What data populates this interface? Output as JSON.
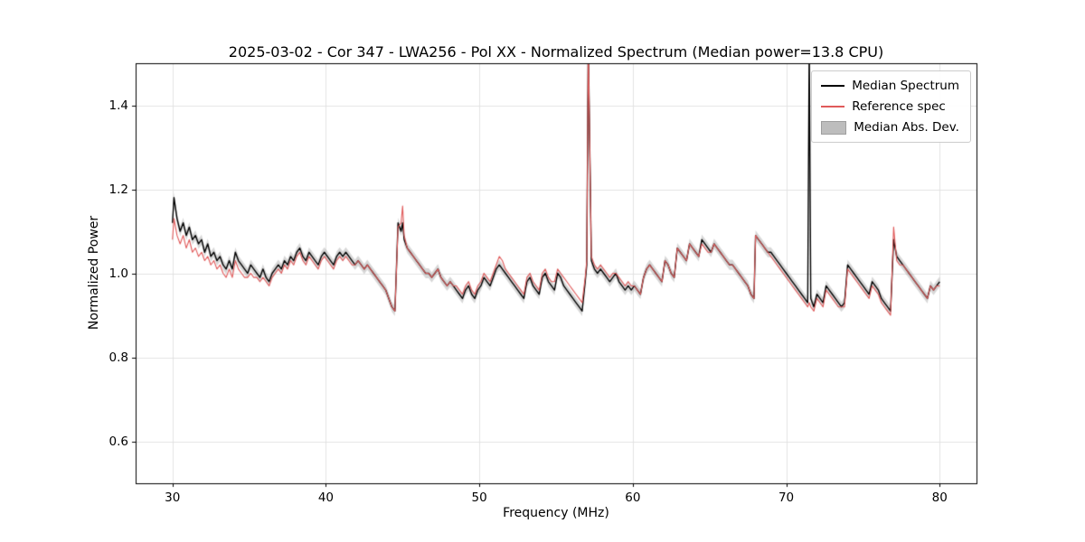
{
  "chart_data": {
    "type": "line",
    "title": "2025-03-02 - Cor 347 - LWA256 - Pol XX - Normalized Spectrum (Median power=13.8 CPU)",
    "xlabel": "Frequency (MHz)",
    "ylabel": "Normalized Power",
    "xlim": [
      27.6,
      82.4
    ],
    "ylim": [
      0.5,
      1.5
    ],
    "xticks": [
      30,
      40,
      50,
      60,
      70,
      80
    ],
    "yticks": [
      0.6,
      0.8,
      1.0,
      1.2,
      1.4
    ],
    "grid": true,
    "legend_position": "upper right",
    "mad_halfwidth": 0.012,
    "series": [
      {
        "name": "Median Spectrum",
        "color": "#000000",
        "style": "line"
      },
      {
        "name": "Reference spec",
        "color": "#e05a5a",
        "style": "line"
      },
      {
        "name": "Median Abs. Dev.",
        "color": "#bdbdbd",
        "style": "band"
      }
    ],
    "points_format": [
      "frequency_mhz",
      "median_spectrum",
      "reference_spec"
    ],
    "points": [
      [
        30.0,
        1.12,
        1.08
      ],
      [
        30.1,
        1.18,
        1.13
      ],
      [
        30.3,
        1.13,
        1.09
      ],
      [
        30.5,
        1.1,
        1.07
      ],
      [
        30.7,
        1.12,
        1.09
      ],
      [
        30.9,
        1.09,
        1.06
      ],
      [
        31.1,
        1.11,
        1.08
      ],
      [
        31.3,
        1.08,
        1.05
      ],
      [
        31.5,
        1.09,
        1.06
      ],
      [
        31.7,
        1.07,
        1.04
      ],
      [
        31.9,
        1.08,
        1.05
      ],
      [
        32.1,
        1.05,
        1.03
      ],
      [
        32.3,
        1.07,
        1.04
      ],
      [
        32.5,
        1.04,
        1.02
      ],
      [
        32.7,
        1.05,
        1.03
      ],
      [
        32.9,
        1.03,
        1.01
      ],
      [
        33.1,
        1.04,
        1.02
      ],
      [
        33.3,
        1.02,
        1.0
      ],
      [
        33.5,
        1.01,
        0.99
      ],
      [
        33.7,
        1.03,
        1.01
      ],
      [
        33.9,
        1.01,
        0.99
      ],
      [
        34.1,
        1.05,
        1.03
      ],
      [
        34.3,
        1.03,
        1.01
      ],
      [
        34.5,
        1.02,
        1.0
      ],
      [
        34.7,
        1.01,
        0.99
      ],
      [
        34.9,
        1.0,
        0.99
      ],
      [
        35.1,
        1.02,
        1.0
      ],
      [
        35.3,
        1.01,
        0.99
      ],
      [
        35.5,
        1.0,
        0.99
      ],
      [
        35.7,
        0.99,
        0.98
      ],
      [
        35.9,
        1.01,
        0.99
      ],
      [
        36.1,
        0.99,
        0.98
      ],
      [
        36.3,
        0.98,
        0.97
      ],
      [
        36.5,
        1.0,
        0.99
      ],
      [
        36.7,
        1.01,
        1.0
      ],
      [
        36.9,
        1.02,
        1.01
      ],
      [
        37.1,
        1.01,
        1.0
      ],
      [
        37.3,
        1.03,
        1.02
      ],
      [
        37.5,
        1.02,
        1.01
      ],
      [
        37.7,
        1.04,
        1.03
      ],
      [
        37.9,
        1.03,
        1.02
      ],
      [
        38.1,
        1.05,
        1.04
      ],
      [
        38.3,
        1.06,
        1.05
      ],
      [
        38.5,
        1.04,
        1.03
      ],
      [
        38.7,
        1.03,
        1.02
      ],
      [
        38.9,
        1.05,
        1.04
      ],
      [
        39.1,
        1.04,
        1.03
      ],
      [
        39.3,
        1.03,
        1.02
      ],
      [
        39.5,
        1.02,
        1.01
      ],
      [
        39.7,
        1.04,
        1.03
      ],
      [
        39.9,
        1.05,
        1.04
      ],
      [
        40.1,
        1.04,
        1.03
      ],
      [
        40.3,
        1.03,
        1.02
      ],
      [
        40.5,
        1.02,
        1.01
      ],
      [
        40.7,
        1.04,
        1.03
      ],
      [
        40.9,
        1.05,
        1.04
      ],
      [
        41.1,
        1.04,
        1.03
      ],
      [
        41.3,
        1.05,
        1.04
      ],
      [
        41.5,
        1.04,
        1.03
      ],
      [
        41.7,
        1.03,
        1.02
      ],
      [
        41.9,
        1.02,
        1.02
      ],
      [
        42.1,
        1.03,
        1.03
      ],
      [
        42.3,
        1.02,
        1.02
      ],
      [
        42.5,
        1.01,
        1.01
      ],
      [
        42.7,
        1.02,
        1.02
      ],
      [
        42.9,
        1.01,
        1.01
      ],
      [
        43.1,
        1.0,
        1.0
      ],
      [
        43.3,
        0.99,
        0.99
      ],
      [
        43.5,
        0.98,
        0.98
      ],
      [
        43.7,
        0.97,
        0.97
      ],
      [
        43.9,
        0.96,
        0.96
      ],
      [
        44.1,
        0.94,
        0.94
      ],
      [
        44.3,
        0.92,
        0.92
      ],
      [
        44.5,
        0.91,
        0.91
      ],
      [
        44.7,
        1.12,
        1.11
      ],
      [
        44.9,
        1.1,
        1.12
      ],
      [
        45.0,
        1.12,
        1.16
      ],
      [
        45.1,
        1.08,
        1.09
      ],
      [
        45.3,
        1.06,
        1.06
      ],
      [
        45.5,
        1.05,
        1.05
      ],
      [
        45.7,
        1.04,
        1.04
      ],
      [
        45.9,
        1.03,
        1.03
      ],
      [
        46.1,
        1.02,
        1.02
      ],
      [
        46.3,
        1.01,
        1.01
      ],
      [
        46.5,
        1.0,
        1.0
      ],
      [
        46.7,
        1.0,
        1.0
      ],
      [
        46.9,
        0.99,
        0.99
      ],
      [
        47.1,
        1.0,
        1.0
      ],
      [
        47.3,
        1.01,
        1.01
      ],
      [
        47.5,
        0.99,
        0.99
      ],
      [
        47.7,
        0.98,
        0.98
      ],
      [
        47.9,
        0.97,
        0.97
      ],
      [
        48.1,
        0.98,
        0.98
      ],
      [
        48.3,
        0.97,
        0.97
      ],
      [
        48.5,
        0.96,
        0.97
      ],
      [
        48.7,
        0.95,
        0.96
      ],
      [
        48.9,
        0.94,
        0.95
      ],
      [
        49.1,
        0.96,
        0.97
      ],
      [
        49.3,
        0.97,
        0.98
      ],
      [
        49.5,
        0.95,
        0.96
      ],
      [
        49.7,
        0.94,
        0.95
      ],
      [
        49.9,
        0.96,
        0.97
      ],
      [
        50.1,
        0.97,
        0.98
      ],
      [
        50.3,
        0.99,
        1.0
      ],
      [
        50.5,
        0.98,
        0.99
      ],
      [
        50.7,
        0.97,
        0.98
      ],
      [
        50.9,
        0.99,
        1.0
      ],
      [
        51.1,
        1.01,
        1.02
      ],
      [
        51.3,
        1.02,
        1.04
      ],
      [
        51.5,
        1.01,
        1.03
      ],
      [
        51.7,
        1.0,
        1.01
      ],
      [
        51.9,
        0.99,
        1.0
      ],
      [
        52.1,
        0.98,
        0.99
      ],
      [
        52.3,
        0.97,
        0.98
      ],
      [
        52.5,
        0.96,
        0.97
      ],
      [
        52.7,
        0.95,
        0.96
      ],
      [
        52.9,
        0.94,
        0.95
      ],
      [
        53.1,
        0.98,
        0.99
      ],
      [
        53.3,
        0.99,
        1.0
      ],
      [
        53.5,
        0.97,
        0.98
      ],
      [
        53.7,
        0.96,
        0.97
      ],
      [
        53.9,
        0.95,
        0.96
      ],
      [
        54.1,
        0.99,
        1.0
      ],
      [
        54.3,
        1.0,
        1.01
      ],
      [
        54.5,
        0.98,
        0.99
      ],
      [
        54.7,
        0.97,
        0.98
      ],
      [
        54.9,
        0.96,
        0.98
      ],
      [
        55.1,
        1.0,
        1.01
      ],
      [
        55.3,
        0.99,
        1.0
      ],
      [
        55.5,
        0.97,
        0.99
      ],
      [
        55.7,
        0.96,
        0.98
      ],
      [
        55.9,
        0.95,
        0.97
      ],
      [
        56.1,
        0.94,
        0.96
      ],
      [
        56.3,
        0.93,
        0.95
      ],
      [
        56.5,
        0.92,
        0.94
      ],
      [
        56.7,
        0.91,
        0.93
      ],
      [
        56.9,
        0.98,
        0.99
      ],
      [
        57.0,
        1.02,
        1.03
      ],
      [
        57.1,
        1.55,
        1.55
      ],
      [
        57.3,
        1.03,
        1.04
      ],
      [
        57.5,
        1.01,
        1.02
      ],
      [
        57.7,
        1.0,
        1.01
      ],
      [
        57.9,
        1.01,
        1.02
      ],
      [
        58.1,
        1.0,
        1.01
      ],
      [
        58.3,
        0.99,
        1.0
      ],
      [
        58.5,
        0.98,
        0.99
      ],
      [
        58.7,
        0.99,
        1.0
      ],
      [
        58.9,
        1.0,
        1.0
      ],
      [
        59.1,
        0.98,
        0.99
      ],
      [
        59.3,
        0.97,
        0.98
      ],
      [
        59.5,
        0.96,
        0.97
      ],
      [
        59.7,
        0.97,
        0.98
      ],
      [
        59.9,
        0.96,
        0.97
      ],
      [
        60.1,
        0.97,
        0.97
      ],
      [
        60.3,
        0.96,
        0.96
      ],
      [
        60.5,
        0.95,
        0.95
      ],
      [
        60.7,
        0.99,
        0.99
      ],
      [
        60.9,
        1.01,
        1.01
      ],
      [
        61.1,
        1.02,
        1.02
      ],
      [
        61.3,
        1.01,
        1.01
      ],
      [
        61.5,
        1.0,
        1.0
      ],
      [
        61.7,
        0.99,
        0.99
      ],
      [
        61.9,
        0.98,
        0.98
      ],
      [
        62.1,
        1.03,
        1.03
      ],
      [
        62.3,
        1.02,
        1.02
      ],
      [
        62.5,
        1.0,
        1.0
      ],
      [
        62.7,
        0.99,
        0.99
      ],
      [
        62.9,
        1.06,
        1.06
      ],
      [
        63.1,
        1.05,
        1.05
      ],
      [
        63.3,
        1.04,
        1.04
      ],
      [
        63.5,
        1.03,
        1.03
      ],
      [
        63.7,
        1.07,
        1.07
      ],
      [
        63.9,
        1.06,
        1.06
      ],
      [
        64.1,
        1.05,
        1.05
      ],
      [
        64.3,
        1.04,
        1.04
      ],
      [
        64.5,
        1.08,
        1.07
      ],
      [
        64.7,
        1.07,
        1.06
      ],
      [
        64.9,
        1.06,
        1.05
      ],
      [
        65.1,
        1.05,
        1.05
      ],
      [
        65.3,
        1.07,
        1.07
      ],
      [
        65.5,
        1.06,
        1.06
      ],
      [
        65.7,
        1.05,
        1.05
      ],
      [
        65.9,
        1.04,
        1.04
      ],
      [
        66.1,
        1.03,
        1.03
      ],
      [
        66.3,
        1.02,
        1.02
      ],
      [
        66.5,
        1.02,
        1.02
      ],
      [
        66.7,
        1.01,
        1.01
      ],
      [
        66.9,
        1.0,
        1.0
      ],
      [
        67.1,
        0.99,
        0.99
      ],
      [
        67.3,
        0.98,
        0.98
      ],
      [
        67.5,
        0.97,
        0.97
      ],
      [
        67.7,
        0.95,
        0.95
      ],
      [
        67.9,
        0.94,
        0.94
      ],
      [
        68.0,
        1.09,
        1.09
      ],
      [
        68.2,
        1.08,
        1.08
      ],
      [
        68.4,
        1.07,
        1.07
      ],
      [
        68.6,
        1.06,
        1.06
      ],
      [
        68.8,
        1.05,
        1.05
      ],
      [
        69.0,
        1.05,
        1.04
      ],
      [
        69.2,
        1.04,
        1.03
      ],
      [
        69.4,
        1.03,
        1.02
      ],
      [
        69.6,
        1.02,
        1.01
      ],
      [
        69.8,
        1.01,
        1.0
      ],
      [
        70.0,
        1.0,
        0.99
      ],
      [
        70.2,
        0.99,
        0.98
      ],
      [
        70.4,
        0.98,
        0.97
      ],
      [
        70.6,
        0.97,
        0.96
      ],
      [
        70.8,
        0.96,
        0.95
      ],
      [
        71.0,
        0.95,
        0.94
      ],
      [
        71.2,
        0.94,
        0.93
      ],
      [
        71.4,
        0.93,
        0.92
      ],
      [
        71.5,
        1.55,
        0.93
      ],
      [
        71.6,
        0.94,
        0.92
      ],
      [
        71.8,
        0.92,
        0.91
      ],
      [
        72.0,
        0.95,
        0.94
      ],
      [
        72.2,
        0.94,
        0.93
      ],
      [
        72.4,
        0.93,
        0.92
      ],
      [
        72.6,
        0.97,
        0.96
      ],
      [
        72.8,
        0.96,
        0.95
      ],
      [
        73.0,
        0.95,
        0.94
      ],
      [
        73.2,
        0.94,
        0.93
      ],
      [
        73.4,
        0.93,
        0.92
      ],
      [
        73.6,
        0.92,
        0.92
      ],
      [
        73.8,
        0.93,
        0.92
      ],
      [
        74.0,
        1.02,
        1.01
      ],
      [
        74.2,
        1.01,
        1.0
      ],
      [
        74.4,
        1.0,
        0.99
      ],
      [
        74.6,
        0.99,
        0.98
      ],
      [
        74.8,
        0.98,
        0.97
      ],
      [
        75.0,
        0.97,
        0.96
      ],
      [
        75.2,
        0.96,
        0.95
      ],
      [
        75.4,
        0.95,
        0.94
      ],
      [
        75.6,
        0.98,
        0.97
      ],
      [
        75.8,
        0.97,
        0.96
      ],
      [
        76.0,
        0.96,
        0.95
      ],
      [
        76.2,
        0.94,
        0.93
      ],
      [
        76.4,
        0.93,
        0.92
      ],
      [
        76.6,
        0.92,
        0.91
      ],
      [
        76.8,
        0.91,
        0.9
      ],
      [
        77.0,
        1.08,
        1.11
      ],
      [
        77.2,
        1.04,
        1.03
      ],
      [
        77.4,
        1.03,
        1.02
      ],
      [
        77.6,
        1.02,
        1.02
      ],
      [
        77.8,
        1.01,
        1.01
      ],
      [
        78.0,
        1.0,
        1.0
      ],
      [
        78.2,
        0.99,
        0.99
      ],
      [
        78.4,
        0.98,
        0.98
      ],
      [
        78.6,
        0.97,
        0.97
      ],
      [
        78.8,
        0.96,
        0.96
      ],
      [
        79.0,
        0.95,
        0.95
      ],
      [
        79.2,
        0.94,
        0.94
      ],
      [
        79.4,
        0.97,
        0.97
      ],
      [
        79.6,
        0.96,
        0.96
      ],
      [
        79.8,
        0.97,
        0.97
      ],
      [
        80.0,
        0.98,
        0.97
      ]
    ],
    "colors": {
      "grid": "#e3e3e3",
      "axis": "#000000",
      "band_fill": "rgba(150,150,150,0.38)",
      "background": "#ffffff"
    }
  }
}
